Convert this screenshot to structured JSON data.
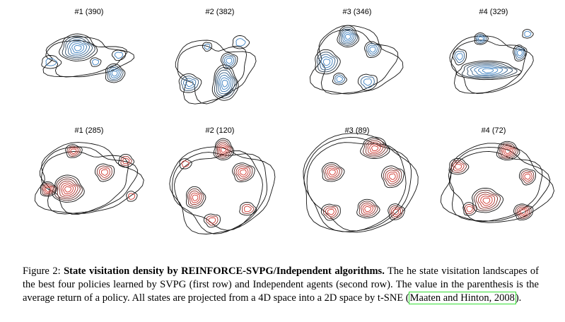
{
  "panels": [
    {
      "row": 1,
      "label": "#1 (390)",
      "policy": "#1",
      "avg_return": 390,
      "color": "#3a7fc1"
    },
    {
      "row": 1,
      "label": "#2 (382)",
      "policy": "#2",
      "avg_return": 382,
      "color": "#3a7fc1"
    },
    {
      "row": 1,
      "label": "#3 (346)",
      "policy": "#3",
      "avg_return": 346,
      "color": "#3a7fc1"
    },
    {
      "row": 1,
      "label": "#4 (329)",
      "policy": "#4",
      "avg_return": 329,
      "color": "#3a7fc1"
    },
    {
      "row": 2,
      "label": "#1 (285)",
      "policy": "#1",
      "avg_return": 285,
      "color": "#d0342c"
    },
    {
      "row": 2,
      "label": "#2 (120)",
      "policy": "#2",
      "avg_return": 120,
      "color": "#d0342c"
    },
    {
      "row": 2,
      "label": "#3 (89)",
      "policy": "#3",
      "avg_return": 89,
      "color": "#d0342c"
    },
    {
      "row": 2,
      "label": "#4 (72)",
      "policy": "#4",
      "avg_return": 72,
      "color": "#d0342c"
    }
  ],
  "caption": {
    "prefix": "Figure 2: ",
    "bold": "State visitation density by REINFORCE-SVPG/Independent algorithms.",
    "body": " The he state visitation landscapes of the best four policies learned by SVPG (first row) and Independent agents (second row). The value in the parenthesis is the average return of a policy. All states are projected from a 4D space into a 2D space by t-SNE (",
    "citation": "Maaten and Hinton, 2008",
    "suffix": ")."
  },
  "colors": {
    "svpg": "#3a7fc1",
    "independent": "#d0342c",
    "outer_contour": "#000000",
    "citation_box": "#33dd33"
  }
}
